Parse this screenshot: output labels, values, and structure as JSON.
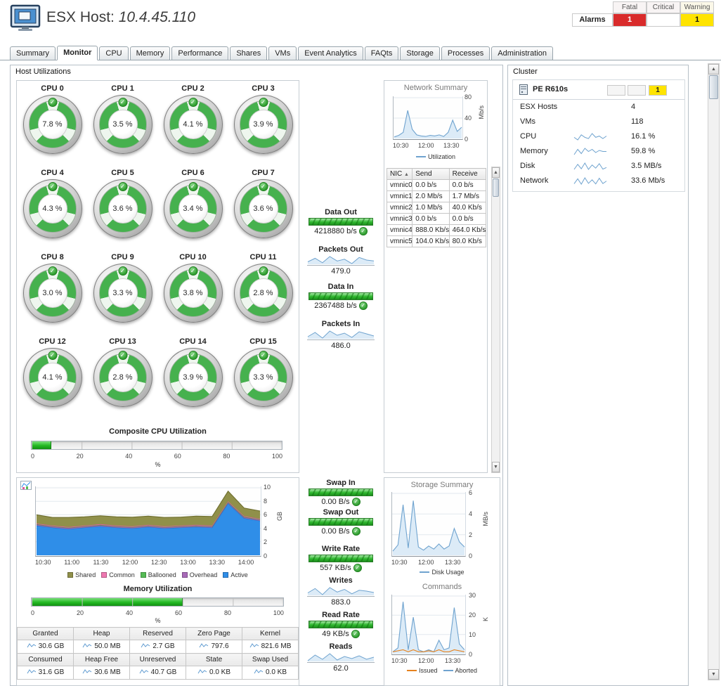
{
  "header": {
    "title_prefix": "ESX Host:",
    "host": "10.4.45.110"
  },
  "alarms": {
    "label": "Alarms",
    "columns": [
      "Fatal",
      "Critical",
      "Warning"
    ],
    "fatal": "1",
    "critical": "",
    "warning": "1"
  },
  "tabs": [
    {
      "label": "Summary"
    },
    {
      "label": "Monitor",
      "active": true
    },
    {
      "label": "CPU"
    },
    {
      "label": "Memory"
    },
    {
      "label": "Performance"
    },
    {
      "label": "Shares"
    },
    {
      "label": "VMs"
    },
    {
      "label": "Event Analytics"
    },
    {
      "label": "FAQts"
    },
    {
      "label": "Storage"
    },
    {
      "label": "Processes"
    },
    {
      "label": "Administration"
    }
  ],
  "host_panel": {
    "title": "Host Utilizations"
  },
  "cpu_gauges": [
    {
      "label": "CPU 0",
      "value": "7.8 %"
    },
    {
      "label": "CPU 1",
      "value": "3.5 %"
    },
    {
      "label": "CPU 2",
      "value": "4.1 %"
    },
    {
      "label": "CPU 3",
      "value": "3.9 %"
    },
    {
      "label": "CPU 4",
      "value": "4.3 %"
    },
    {
      "label": "CPU 5",
      "value": "3.6 %"
    },
    {
      "label": "CPU 6",
      "value": "3.4 %"
    },
    {
      "label": "CPU 7",
      "value": "3.6 %"
    },
    {
      "label": "CPU 8",
      "value": "3.0 %"
    },
    {
      "label": "CPU 9",
      "value": "3.3 %"
    },
    {
      "label": "CPU 10",
      "value": "3.8 %"
    },
    {
      "label": "CPU 11",
      "value": "2.8 %"
    },
    {
      "label": "CPU 12",
      "value": "4.1 %"
    },
    {
      "label": "CPU 13",
      "value": "2.8 %"
    },
    {
      "label": "CPU 14",
      "value": "3.9 %"
    },
    {
      "label": "CPU 15",
      "value": "3.3 %"
    }
  ],
  "composite_cpu": {
    "title": "Composite CPU Utilization",
    "percent": 8,
    "ticks": [
      "0",
      "20",
      "40",
      "60",
      "80",
      "100"
    ],
    "unit": "%"
  },
  "flows_top": [
    {
      "label": "Data Out",
      "kind": "bar",
      "value": "4218880 b/s",
      "check": true
    },
    {
      "label": "Packets Out",
      "kind": "spark",
      "value": "479.0",
      "spark": [
        477,
        481,
        476,
        483,
        478,
        480,
        475,
        482,
        479,
        478
      ]
    },
    {
      "label": "Data In",
      "kind": "bar",
      "value": "2367488 b/s",
      "check": true
    },
    {
      "label": "Packets In",
      "kind": "spark",
      "value": "486.0",
      "spark": [
        482,
        488,
        480,
        490,
        484,
        487,
        481,
        489,
        486,
        483
      ]
    }
  ],
  "flows_bottom": [
    {
      "label": "Swap In",
      "kind": "bar",
      "value": "0.00 B/s",
      "check": true
    },
    {
      "label": "Swap Out",
      "kind": "bar",
      "value": "0.00 B/s",
      "check": true
    },
    {
      "label": "Write Rate",
      "kind": "bar",
      "value": "557 KB/s",
      "check": true
    },
    {
      "label": "Writes",
      "kind": "spark",
      "value": "883.0",
      "spark": [
        870,
        895,
        860,
        900,
        875,
        890,
        865,
        885,
        880,
        872
      ]
    },
    {
      "label": "Read Rate",
      "kind": "bar",
      "value": "49 KB/s",
      "check": true
    },
    {
      "label": "Reads",
      "kind": "spark",
      "value": "62.0",
      "spark": [
        58,
        66,
        60,
        68,
        59,
        64,
        61,
        65,
        60,
        63
      ]
    }
  ],
  "network_summary": {
    "title": "Network Summary",
    "chart": {
      "type": "line",
      "ylim": [
        0,
        80
      ],
      "y_ticks": [
        "80",
        "40",
        "0"
      ],
      "y_unit": "Mb/s",
      "x_ticks": [
        "10:30",
        "12:00",
        "13:30"
      ],
      "series": [
        {
          "name": "Utilization",
          "color": "#6fa3cf",
          "fill": "#dcebf7",
          "values": [
            3,
            6,
            12,
            55,
            18,
            7,
            5,
            4,
            6,
            5,
            7,
            4,
            12,
            36,
            14,
            22
          ]
        }
      ],
      "legend": [
        {
          "name": "Utilization",
          "color": "#6fa3cf"
        }
      ]
    },
    "nic_table": {
      "columns": [
        "NIC",
        "Send",
        "Receive"
      ],
      "rows": [
        [
          "vmnic0",
          "0.0 b/s",
          "0.0 b/s"
        ],
        [
          "vmnic1",
          "2.0 Mb/s",
          "1.7 Mb/s"
        ],
        [
          "vmnic2",
          "1.0 Mb/s",
          "40.0 Kb/s"
        ],
        [
          "vmnic3",
          "0.0 b/s",
          "0.0 b/s"
        ],
        [
          "vmnic4",
          "888.0 Kb/s",
          "464.0 Kb/s"
        ],
        [
          "vmnic5",
          "104.0 Kb/s",
          "80.0 Kb/s"
        ]
      ]
    }
  },
  "memory": {
    "chart": {
      "type": "area",
      "stacked": true,
      "ylim": [
        0,
        10
      ],
      "y_ticks": [
        "10",
        "8",
        "6",
        "4",
        "2",
        "0"
      ],
      "y_unit": "GB",
      "x_ticks": [
        "10:30",
        "11:00",
        "11:30",
        "12:00",
        "12:30",
        "13:00",
        "13:30",
        "14:00"
      ],
      "series": [
        {
          "name": "Active",
          "color": "#1a6fc4",
          "fill": "#2f8ee8",
          "values": [
            4.4,
            4.1,
            3.9,
            4.1,
            4.3,
            4.1,
            4.0,
            4.2,
            4.0,
            4.1,
            4.2,
            4.1,
            7.7,
            5.5,
            5.1
          ]
        },
        {
          "name": "Overhead",
          "color": "#8a4a9e",
          "fill": "#a86ab8",
          "values": [
            0.15,
            0.15,
            0.15,
            0.15,
            0.15,
            0.15,
            0.15,
            0.15,
            0.15,
            0.15,
            0.15,
            0.15,
            0.15,
            0.15,
            0.15
          ]
        },
        {
          "name": "Ballooned",
          "color": "#3aa83a",
          "fill": "#55bb55",
          "values": [
            0.05,
            0.05,
            0.05,
            0.05,
            0.05,
            0.05,
            0.05,
            0.05,
            0.05,
            0.05,
            0.05,
            0.05,
            0.05,
            0.05,
            0.05
          ]
        },
        {
          "name": "Common",
          "color": "#e0559a",
          "fill": "#ee77b0",
          "values": [
            0.1,
            0.1,
            0.1,
            0.1,
            0.1,
            0.1,
            0.1,
            0.1,
            0.1,
            0.1,
            0.1,
            0.1,
            0.1,
            0.1,
            0.1
          ]
        },
        {
          "name": "Shared",
          "color": "#6f6f2f",
          "fill": "#90904a",
          "values": [
            1.3,
            1.2,
            1.4,
            1.3,
            1.25,
            1.3,
            1.35,
            1.3,
            1.3,
            1.25,
            1.3,
            1.35,
            1.5,
            1.2,
            1.15
          ]
        }
      ],
      "legend": [
        {
          "name": "Shared",
          "color": "#90904a"
        },
        {
          "name": "Common",
          "color": "#ee77b0"
        },
        {
          "name": "Ballooned",
          "color": "#55bb55"
        },
        {
          "name": "Overhead",
          "color": "#a86ab8"
        },
        {
          "name": "Active",
          "color": "#2f8ee8"
        }
      ]
    },
    "utilization": {
      "title": "Memory Utilization",
      "percent": 60,
      "ticks": [
        "0",
        "20",
        "40",
        "60",
        "80",
        "100"
      ],
      "unit": "%"
    },
    "stats": {
      "rows": [
        {
          "headers": [
            "Granted",
            "Heap",
            "Reserved",
            "Zero Page",
            "Kernel"
          ],
          "values": [
            "30.6 GB",
            "50.0 MB",
            "2.7 GB",
            "797.6",
            "821.6 MB"
          ]
        },
        {
          "headers": [
            "Consumed",
            "Heap Free",
            "Unreserved",
            "State",
            "Swap Used"
          ],
          "values": [
            "31.6 GB",
            "30.6 MB",
            "40.7 GB",
            "0.0 KB",
            "0.0 KB"
          ]
        }
      ]
    }
  },
  "storage_summary": {
    "title": "Storage Summary",
    "chart": {
      "type": "line",
      "ylim": [
        0,
        6
      ],
      "y_ticks": [
        "6",
        "4",
        "2",
        "0"
      ],
      "y_unit": "MB/s",
      "x_ticks": [
        "10:30",
        "12:00",
        "13:30"
      ],
      "series": [
        {
          "name": "Disk Usage",
          "color": "#6fa3cf",
          "fill": "#dcebf7",
          "values": [
            0.4,
            1.0,
            4.9,
            0.7,
            5.3,
            0.8,
            0.5,
            0.9,
            0.6,
            1.1,
            0.6,
            0.9,
            2.6,
            1.3,
            0.8
          ]
        }
      ],
      "legend": [
        {
          "name": "Disk Usage",
          "color": "#6fa3cf"
        }
      ]
    }
  },
  "commands": {
    "title": "Commands",
    "chart": {
      "type": "line",
      "ylim": [
        0,
        30
      ],
      "y_ticks": [
        "30",
        "20",
        "10",
        "0"
      ],
      "y_unit": "K",
      "x_ticks": [
        "10:30",
        "12:00",
        "13:30"
      ],
      "series": [
        {
          "name": "Aborted",
          "color": "#6fa3cf",
          "fill": "#dcebf7",
          "values": [
            1,
            3,
            27,
            2,
            19,
            2,
            1,
            2,
            1,
            7,
            2,
            3,
            24,
            5,
            2
          ]
        },
        {
          "name": "Issued",
          "color": "#e6821e",
          "values": [
            1,
            1.5,
            2,
            1,
            2,
            1,
            1,
            1.5,
            1,
            2,
            1,
            1,
            2,
            1.5,
            1
          ]
        }
      ],
      "legend": [
        {
          "name": "Issued",
          "color": "#e6821e"
        },
        {
          "name": "Aborted",
          "color": "#6fa3cf"
        }
      ]
    }
  },
  "cluster": {
    "title": "Cluster",
    "name": "PE R610s",
    "alarm_cells": {
      "fatal": "",
      "critical": "",
      "warning": "1"
    },
    "rows": [
      {
        "label": "ESX Hosts",
        "value": "4"
      },
      {
        "label": "VMs",
        "value": "118"
      },
      {
        "label": "CPU",
        "value": "16.1 %",
        "spark": [
          16,
          15.8,
          16.2,
          16,
          15.9,
          16.3,
          16,
          16.1,
          15.9,
          16.1
        ]
      },
      {
        "label": "Memory",
        "value": "59.8 %",
        "spark": [
          59.5,
          60,
          59.6,
          60.1,
          59.8,
          60,
          59.7,
          59.9,
          59.8,
          59.8
        ]
      },
      {
        "label": "Disk",
        "value": "3.5 MB/s",
        "spark": [
          2,
          6,
          2.5,
          7,
          2,
          5.5,
          3,
          6.5,
          2.2,
          3.5
        ]
      },
      {
        "label": "Network",
        "value": "33.6 Mb/s",
        "spark": [
          20,
          45,
          18,
          50,
          22,
          40,
          19,
          48,
          21,
          33.6
        ]
      }
    ]
  }
}
